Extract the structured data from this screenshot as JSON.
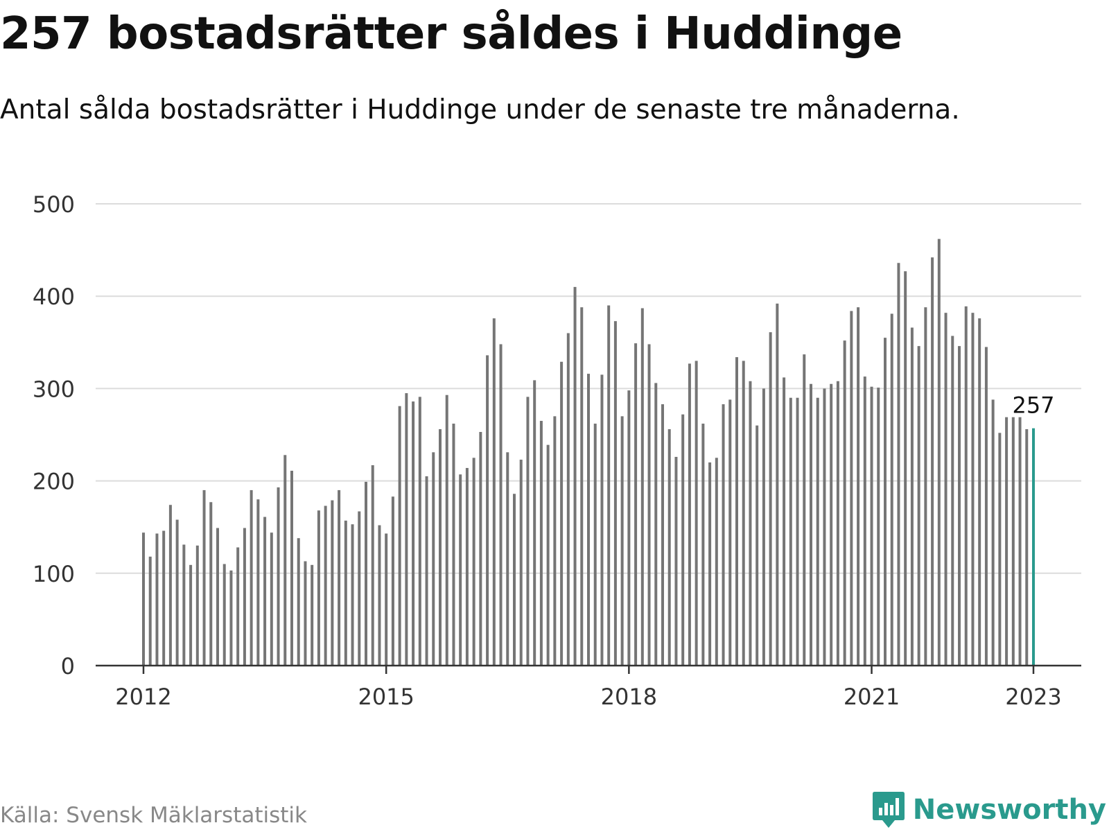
{
  "header": {
    "title": "257 bostadsrätter såldes i Huddinge",
    "subtitle": "Antal sålda bostadsrätter i Huddinge under de senaste tre månaderna."
  },
  "footer": {
    "source": "Källa: Svensk Mäklarstatistik",
    "brand": "Newsworthy"
  },
  "colors": {
    "bar": "#757575",
    "highlight": "#2a9a8d",
    "grid": "#dcdcdc",
    "axis": "#333333",
    "tick_text": "#333333"
  },
  "icons": {
    "brand_logo": "newsworthy-bar-chart-icon"
  },
  "chart_data": {
    "type": "bar",
    "title": "257 bostadsrätter såldes i Huddinge",
    "subtitle": "Antal sålda bostadsrätter i Huddinge under de senaste tre månaderna.",
    "xlabel": "",
    "ylabel": "",
    "ylim": [
      0,
      500
    ],
    "yticks": [
      0,
      100,
      200,
      300,
      400,
      500
    ],
    "xticks": [
      "2012",
      "2015",
      "2018",
      "2021",
      "2023"
    ],
    "grid": true,
    "legend": "none",
    "start": "2012-01",
    "end": "2023-01",
    "frequency": "monthly",
    "highlight_label": "257",
    "series": [
      {
        "values": [
          144,
          118,
          143,
          146,
          174,
          158,
          131,
          109,
          130,
          190,
          177,
          149,
          110,
          103,
          128,
          149,
          190,
          180,
          161,
          144,
          193,
          228,
          211,
          138,
          113,
          109,
          168,
          173,
          179,
          190,
          157,
          153,
          167,
          199,
          217,
          152,
          143,
          183,
          281,
          295,
          286,
          291,
          205,
          231,
          256,
          293,
          262,
          207,
          214,
          225,
          253,
          336,
          376,
          348,
          231,
          186,
          223,
          291,
          309,
          265,
          239,
          270,
          329,
          360,
          410,
          388,
          316,
          262,
          315,
          390,
          373,
          270,
          298,
          349,
          387,
          348,
          306,
          283,
          256,
          226,
          272,
          327,
          330,
          262,
          220,
          225,
          283,
          288,
          334,
          330,
          308,
          260,
          300,
          361,
          392,
          312,
          290,
          290,
          337,
          305,
          290,
          300,
          305,
          308,
          352,
          384,
          388,
          313,
          302,
          301,
          355,
          381,
          436,
          427,
          366,
          346,
          388,
          442,
          462,
          382,
          357,
          346,
          389,
          382,
          376,
          345,
          288,
          252,
          269,
          269,
          269,
          256,
          257
        ]
      }
    ]
  }
}
